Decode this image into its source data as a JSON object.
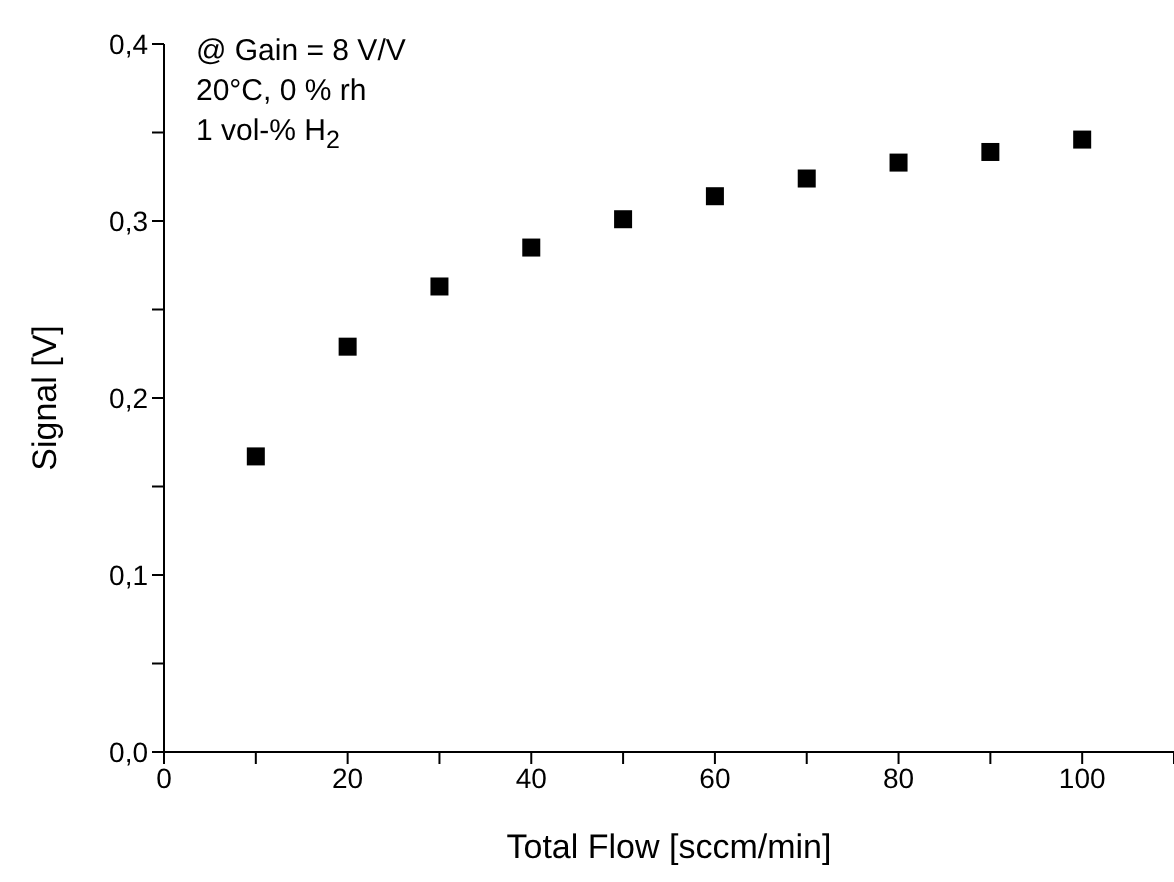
{
  "chart_data": {
    "type": "scatter",
    "xlabel": "Total Flow [sccm/min]",
    "ylabel": "Signal [V]",
    "annotations": [
      "@ Gain = 8 V/V",
      "20°C, 0 % rh",
      "1 vol-% H$_{2}$"
    ],
    "x": [
      10,
      20,
      30,
      40,
      50,
      60,
      70,
      80,
      90,
      100
    ],
    "series": [
      {
        "color": "#000000",
        "values": [
          0.167,
          0.229,
          0.263,
          0.285,
          0.301,
          0.314,
          0.324,
          0.333,
          0.339,
          0.346
        ]
      }
    ],
    "marker": "square",
    "xlim": [
      0,
      110
    ],
    "xticks": [
      0,
      {
        "value": 10,
        "label": null
      },
      20,
      {
        "value": 30,
        "label": null
      },
      40,
      {
        "value": 50,
        "label": null
      },
      60,
      {
        "value": 70,
        "label": null
      },
      80,
      {
        "value": 90,
        "label": null
      },
      100,
      {
        "value": 110,
        "label": null
      }
    ],
    "ylim": [
      0,
      0.4
    ],
    "yticks": [
      {
        "value": 0,
        "label": "0,0"
      },
      {
        "value": 0.05,
        "label": null
      },
      {
        "value": 0.1,
        "label": "0,1"
      },
      {
        "value": 0.15,
        "label": null
      },
      {
        "value": 0.2,
        "label": "0,2"
      },
      {
        "value": 0.25,
        "label": null
      },
      {
        "value": 0.3,
        "label": "0,3"
      },
      {
        "value": 0.35,
        "label": null
      },
      {
        "value": 0.4,
        "label": "0,4"
      }
    ],
    "grid": false,
    "legend": false
  }
}
